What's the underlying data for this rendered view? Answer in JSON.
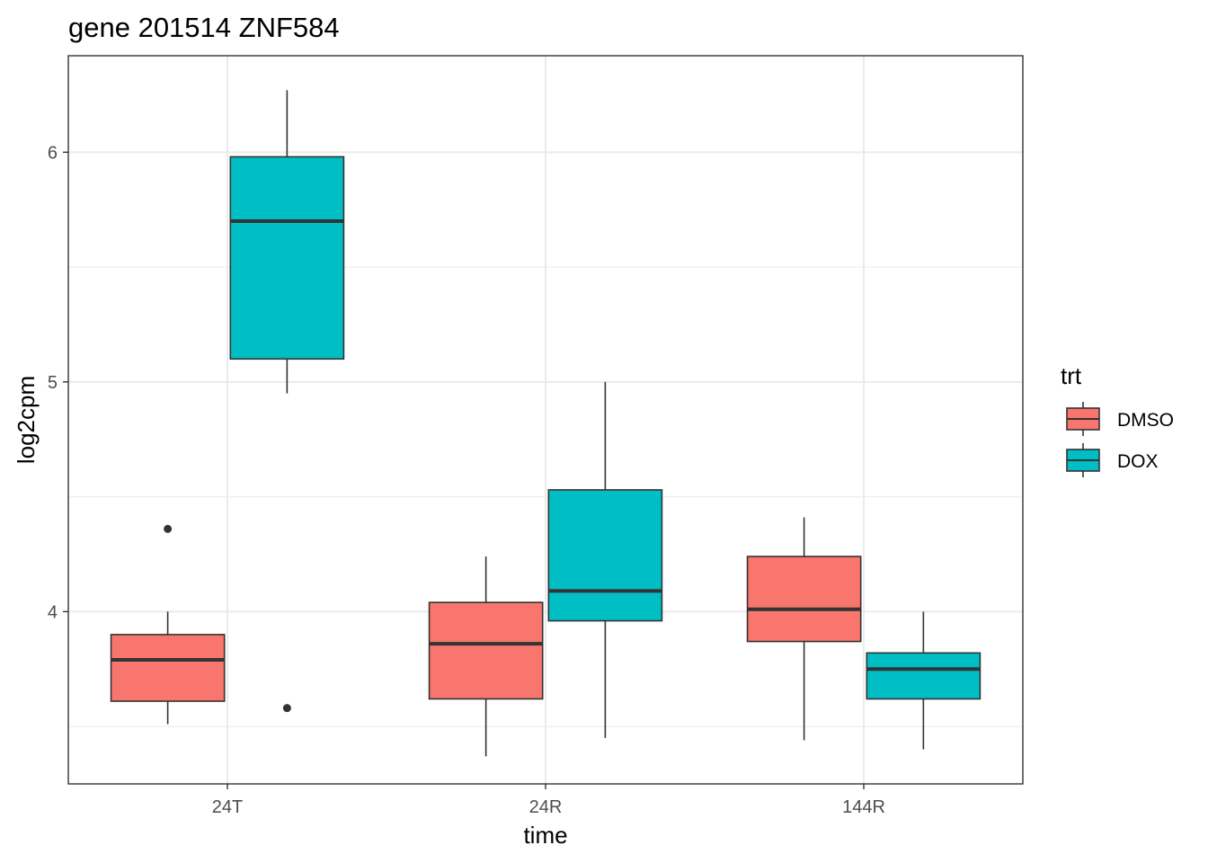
{
  "chart_data": {
    "type": "boxplot",
    "title": "gene 201514 ZNF584",
    "xlabel": "time",
    "ylabel": "log2cpm",
    "categories": [
      "24T",
      "24R",
      "144R"
    ],
    "ylim": [
      3.25,
      6.42
    ],
    "yticks": [
      4,
      5,
      6
    ],
    "grid": true,
    "legend": {
      "title": "trt",
      "position": "right",
      "entries": [
        {
          "name": "DMSO",
          "color": "#F8766D"
        },
        {
          "name": "DOX",
          "color": "#00BFC4"
        }
      ]
    },
    "series": [
      {
        "name": "DMSO",
        "color": "#F8766D",
        "boxes": [
          {
            "category": "24T",
            "whisker_low": 3.51,
            "q1": 3.61,
            "median": 3.79,
            "q3": 3.9,
            "whisker_high": 4.0,
            "outliers": [
              4.36
            ]
          },
          {
            "category": "24R",
            "whisker_low": 3.37,
            "q1": 3.62,
            "median": 3.86,
            "q3": 4.04,
            "whisker_high": 4.24,
            "outliers": []
          },
          {
            "category": "144R",
            "whisker_low": 3.44,
            "q1": 3.87,
            "median": 4.01,
            "q3": 4.24,
            "whisker_high": 4.41,
            "outliers": []
          }
        ]
      },
      {
        "name": "DOX",
        "color": "#00BFC4",
        "boxes": [
          {
            "category": "24T",
            "whisker_low": 4.95,
            "q1": 5.1,
            "median": 5.7,
            "q3": 5.98,
            "whisker_high": 6.27,
            "outliers": [
              3.58
            ]
          },
          {
            "category": "24R",
            "whisker_low": 3.45,
            "q1": 3.96,
            "median": 4.09,
            "q3": 4.53,
            "whisker_high": 5.0,
            "outliers": []
          },
          {
            "category": "144R",
            "whisker_low": 3.4,
            "q1": 3.62,
            "median": 3.75,
            "q3": 3.82,
            "whisker_high": 4.0,
            "outliers": []
          }
        ]
      }
    ]
  }
}
